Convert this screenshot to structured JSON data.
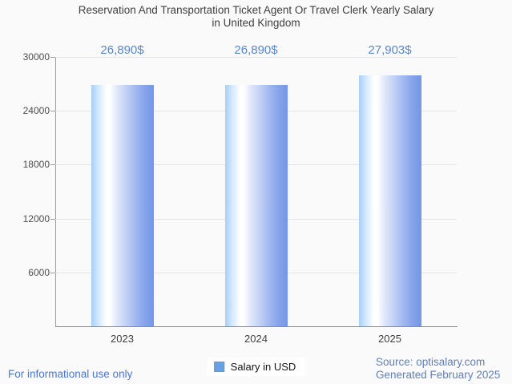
{
  "header": {
    "title_line1": "Reservation And Transportation Ticket Agent Or Travel Clerk Yearly Salary",
    "title_line2": "in United Kingdom"
  },
  "chart_data": {
    "type": "bar",
    "title": "Reservation And Transportation Ticket Agent Or Travel Clerk Yearly Salary in United Kingdom",
    "categories": [
      "2023",
      "2024",
      "2025"
    ],
    "series": [
      {
        "name": "Salary in USD",
        "values": [
          26890,
          26890,
          27903
        ]
      }
    ],
    "value_labels": [
      "26,890$",
      "26,890$",
      "27,903$"
    ],
    "xlabel": "",
    "ylabel": "",
    "ylim": [
      0,
      30000
    ],
    "yticks": [
      6000,
      12000,
      18000,
      24000,
      30000
    ],
    "grid": true,
    "legend_position": "bottom-center"
  },
  "legend": {
    "items": [
      {
        "label": "Salary in USD",
        "swatch_color": "#68a0e4"
      }
    ]
  },
  "footer": {
    "disclaimer": "For informational use only",
    "source": "Source: optisalary.com",
    "generated": "Generated February 2025"
  },
  "colors": {
    "background": "#fafafa",
    "title": "#3f3f3f",
    "value_label": "#5886d7",
    "gridline": "#e4e4e4",
    "axis": "#9b9b9b",
    "bar_gradient_left": "#a6cff7",
    "bar_gradient_mid": "#ffffff",
    "bar_gradient_right": "#7396e7",
    "footer_left_text": "#4b76d6",
    "footer_right_text": "#5f80c0"
  }
}
